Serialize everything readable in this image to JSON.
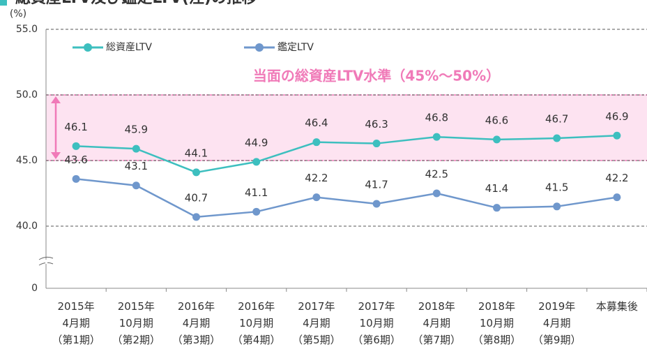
{
  "chart_data": {
    "type": "line",
    "title": "総資産LTV及び鑑定LTV(注)の推移",
    "y_unit": "(%)",
    "annotation": "当面の総資産LTV水準（45%～50%）",
    "highlight_range": [
      45,
      50
    ],
    "categories": [
      "2015年\n4月期\n（第1期）",
      "2015年\n10月期\n（第2期）",
      "2016年\n4月期\n（第3期）",
      "2016年\n10月期\n（第4期）",
      "2017年\n4月期\n（第5期）",
      "2017年\n10月期\n（第6期）",
      "2018年\n4月期\n（第7期）",
      "2018年\n10月期\n（第8期）",
      "2019年\n4月期\n（第9期）",
      "本募集後"
    ],
    "series": [
      {
        "name": "総資産LTV",
        "color": "#3dbfbf",
        "values": [
          46.1,
          45.9,
          44.1,
          44.9,
          46.4,
          46.3,
          46.8,
          46.6,
          46.7,
          46.9
        ]
      },
      {
        "name": "鑑定LTV",
        "color": "#6f97cc",
        "values": [
          43.6,
          43.1,
          40.7,
          41.1,
          42.2,
          41.7,
          42.5,
          41.4,
          41.5,
          42.2
        ]
      }
    ],
    "ylim": [
      0,
      55
    ],
    "y_break": [
      0,
      40
    ],
    "yticks": [
      0,
      {
        "value": 40,
        "label": "40.0"
      },
      {
        "value": 45,
        "label": "45.0"
      },
      {
        "value": 50,
        "label": "50.0"
      },
      {
        "value": 55,
        "label": "55.0"
      }
    ],
    "grid": true,
    "legend": "top-left"
  }
}
